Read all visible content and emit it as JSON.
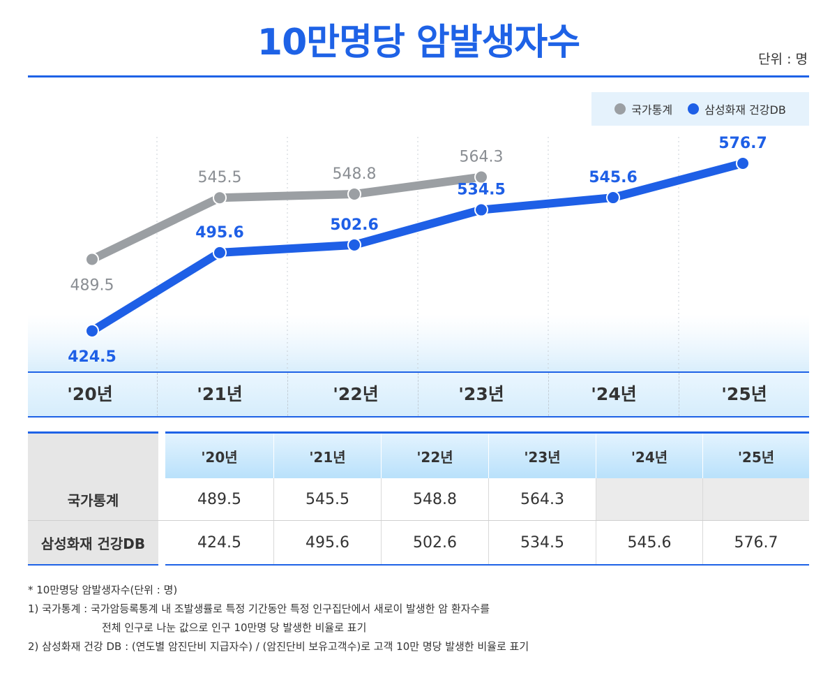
{
  "title": "10만명당 암발생자수",
  "unit": "단위 : 명",
  "legend": [
    {
      "label": "국가통계",
      "color": "#9b9fa3"
    },
    {
      "label": "삼성화재 건강DB",
      "color": "#1e5fe6"
    }
  ],
  "chart_data": {
    "type": "line",
    "title": "10만명당 암발생자수",
    "categories": [
      "'20년",
      "'21년",
      "'22년",
      "'23년",
      "'24년",
      "'25년"
    ],
    "series": [
      {
        "name": "국가통계",
        "color": "#9b9fa3",
        "label_color": "#8a8e93",
        "values": [
          489.5,
          545.5,
          548.8,
          564.3,
          null,
          null
        ]
      },
      {
        "name": "삼성화재 건강DB",
        "color": "#1e5fe6",
        "label_color": "#1e5fe6",
        "values": [
          424.5,
          495.6,
          502.6,
          534.5,
          545.6,
          576.7
        ]
      }
    ],
    "labels": [
      [
        "489.5",
        "545.5",
        "548.8",
        "564.3",
        null,
        null
      ],
      [
        "424.5",
        "495.6",
        "502.6",
        "534.5",
        "545.6",
        "576.7"
      ]
    ],
    "legend_position": "top-right",
    "grid": "vertical dashed"
  },
  "table": {
    "headers": [
      "'20년",
      "'21년",
      "'22년",
      "'23년",
      "'24년",
      "'25년"
    ],
    "rows": [
      {
        "label": "국가통계",
        "values": [
          "489.5",
          "545.5",
          "548.8",
          "564.3",
          "",
          ""
        ]
      },
      {
        "label": "삼성화재 건강DB",
        "values": [
          "424.5",
          "495.6",
          "502.6",
          "534.5",
          "545.6",
          "576.7"
        ]
      }
    ]
  },
  "notes": [
    "* 10만명당 암발생자수(단위 : 명)",
    "1) 국가통계 : 국가암등록통계 내 조발생률로 특정 기간동안 특정 인구집단에서 새로이 발생한 암 환자수를",
    "전체 인구로 나눈 값으로 인구 10만명 당 발생한 비율로 표기",
    "2) 삼성화재 건강 DB : (연도별 암진단비 지급자수) / (암진단비 보유고객수)로 고객 10만 명당 발생한 비율로 표기"
  ]
}
